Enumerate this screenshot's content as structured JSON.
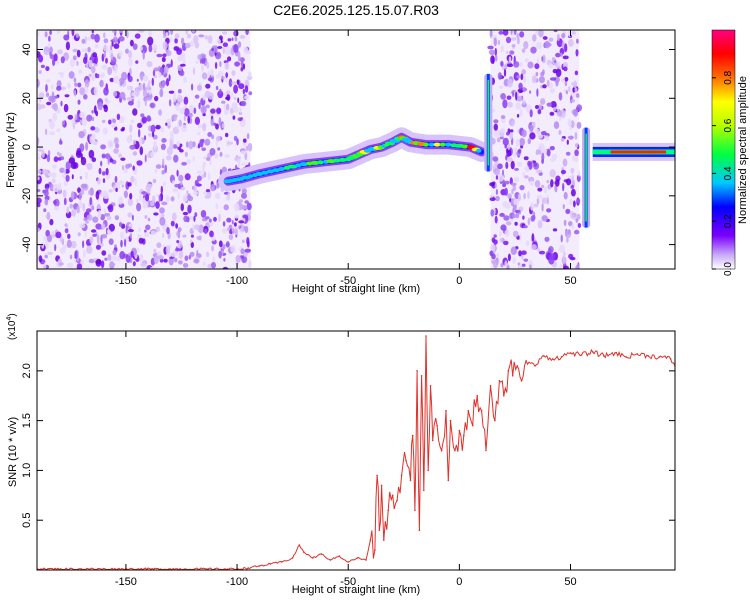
{
  "title": "C2E6.2025.125.15.07.R03",
  "colorbar": {
    "label": "Normalized spectral amplitude",
    "ticks": [
      "0.0",
      "0.2",
      "0.4",
      "0.6",
      "0.8"
    ],
    "range": [
      0,
      1
    ]
  },
  "chart_data": [
    {
      "type": "heatmap",
      "xlabel": "Height of straight line (km)",
      "ylabel": "Frequency (Hz)",
      "xlim": [
        -190,
        97
      ],
      "ylim": [
        -50,
        48
      ],
      "xticks": [
        -150,
        -100,
        -50,
        0,
        50
      ],
      "yticks": [
        -40,
        -20,
        0,
        20,
        40
      ],
      "noise_regions": [
        [
          -190,
          -94
        ],
        [
          14,
          54
        ]
      ],
      "ridge": [
        [
          -104,
          -14
        ],
        [
          -98,
          -13
        ],
        [
          -90,
          -11
        ],
        [
          -80,
          -9
        ],
        [
          -70,
          -7
        ],
        [
          -60,
          -6
        ],
        [
          -50,
          -5
        ],
        [
          -45,
          -3
        ],
        [
          -40,
          -1
        ],
        [
          -35,
          0
        ],
        [
          -30,
          2
        ],
        [
          -26,
          4
        ],
        [
          -22,
          2
        ],
        [
          -15,
          1
        ],
        [
          -5,
          1
        ],
        [
          5,
          0
        ],
        [
          10,
          -2
        ]
      ],
      "spikes": [
        [
          13,
          -10,
          30
        ],
        [
          57,
          -33,
          8
        ]
      ],
      "flat_band": {
        "from": 60,
        "to": 97,
        "frequency": -2
      }
    },
    {
      "type": "line",
      "xlabel": "Height of straight line (km)",
      "ylabel": "SNR (10 * v/v)",
      "multiplier": "(x10^4)",
      "multiplier_base": "(x10",
      "multiplier_exp": "4",
      "xlim": [
        -190,
        97
      ],
      "ylim": [
        0,
        2.4
      ],
      "xticks": [
        -150,
        -100,
        -50,
        0,
        50
      ],
      "yticks": [
        0.5,
        1.0,
        1.5,
        2.0
      ],
      "color": "#e0302a",
      "series": [
        {
          "x": [
            -190,
            -170,
            -150,
            -130,
            -110,
            -100,
            -95,
            -90,
            -85,
            -80,
            -75,
            -72,
            -70,
            -66,
            -62,
            -58,
            -54,
            -50,
            -46,
            -42,
            -40,
            -38,
            -37,
            -36,
            -35,
            -34,
            -32,
            -30,
            -28,
            -26,
            -24,
            -22,
            -21,
            -20,
            -19,
            -18,
            -17,
            -16,
            -15,
            -14,
            -13,
            -12,
            -10,
            -8,
            -6,
            -5,
            -4,
            -2,
            0,
            2,
            4,
            6,
            8,
            10,
            12,
            14,
            16,
            18,
            20,
            22,
            24,
            26,
            28,
            30,
            34,
            38,
            42,
            46,
            50,
            55,
            60,
            65,
            70,
            75,
            80,
            85,
            90,
            95,
            97
          ],
          "values": [
            0.01,
            0.01,
            0.01,
            0.01,
            0.01,
            0.01,
            0.02,
            0.04,
            0.06,
            0.08,
            0.12,
            0.25,
            0.18,
            0.12,
            0.16,
            0.1,
            0.14,
            0.08,
            0.12,
            0.1,
            0.3,
            0.2,
            0.95,
            0.4,
            0.85,
            0.3,
            0.6,
            0.75,
            0.7,
            0.95,
            1.1,
            0.9,
            1.35,
            0.6,
            2.0,
            0.4,
            1.95,
            0.8,
            2.35,
            1.0,
            1.85,
            1.3,
            1.45,
            1.2,
            1.6,
            0.9,
            1.5,
            1.2,
            1.4,
            1.35,
            1.6,
            1.45,
            1.75,
            1.6,
            1.2,
            1.85,
            1.5,
            1.9,
            1.75,
            2.0,
            1.95,
            2.05,
            1.9,
            2.1,
            2.05,
            2.15,
            2.12,
            2.14,
            2.18,
            2.16,
            2.19,
            2.15,
            2.18,
            2.14,
            2.17,
            2.15,
            2.14,
            2.12,
            2.05
          ]
        }
      ]
    }
  ]
}
